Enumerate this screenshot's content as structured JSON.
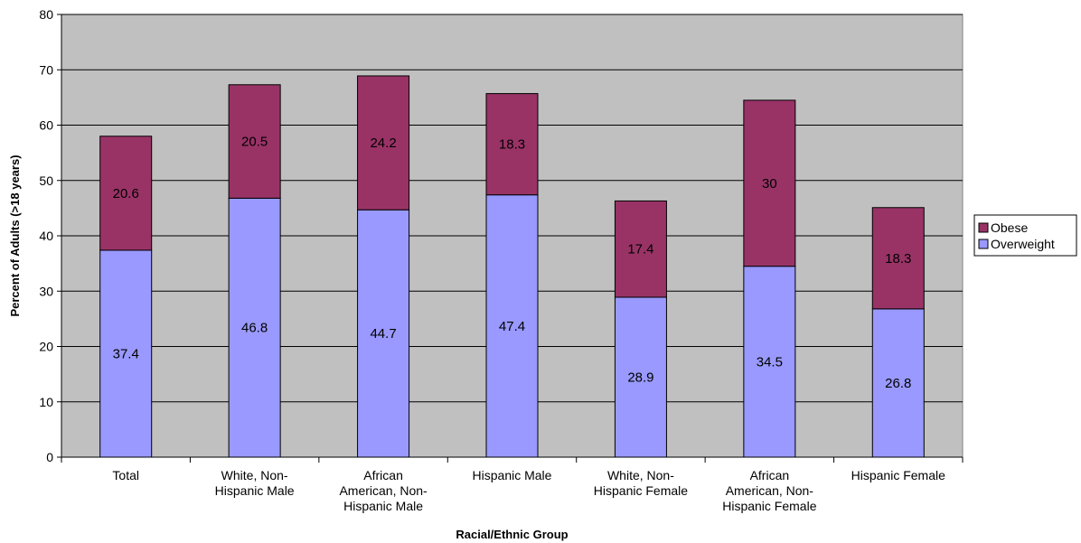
{
  "chart_data": {
    "type": "bar",
    "stacked": true,
    "title": "",
    "xlabel": "Racial/Ethnic Group",
    "ylabel": "Percent of Adults (>18 years)",
    "ylim": [
      0,
      80
    ],
    "yticks": [
      0,
      10,
      20,
      30,
      40,
      50,
      60,
      70,
      80
    ],
    "grid": true,
    "legend_position": "right",
    "categories": [
      [
        "Total"
      ],
      [
        "White, Non-",
        "Hispanic Male"
      ],
      [
        "African",
        "American, Non-",
        "Hispanic Male"
      ],
      [
        "Hispanic Male"
      ],
      [
        "White, Non-",
        "Hispanic Female"
      ],
      [
        "African",
        "American, Non-",
        "Hispanic Female"
      ],
      [
        "Hispanic Female"
      ]
    ],
    "series": [
      {
        "name": "Overweight",
        "color": "#9999ff",
        "values": [
          37.4,
          46.8,
          44.7,
          47.4,
          28.9,
          34.5,
          26.8
        ]
      },
      {
        "name": "Obese",
        "color": "#993366",
        "values": [
          20.6,
          20.5,
          24.2,
          18.3,
          17.4,
          30,
          18.3
        ]
      }
    ],
    "legend_order": [
      "Obese",
      "Overweight"
    ],
    "plot_background": "#c0c0c0"
  }
}
